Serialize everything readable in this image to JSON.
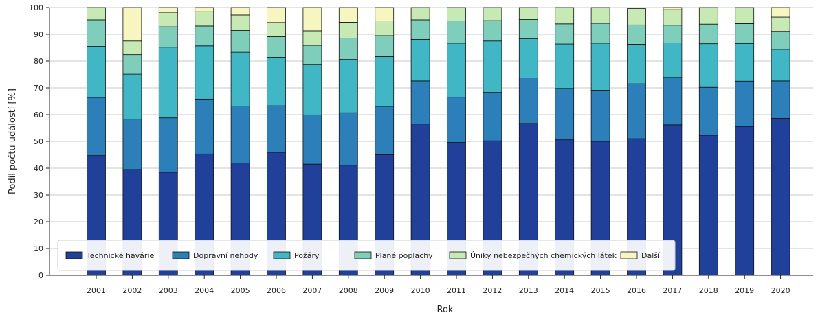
{
  "chart_data": {
    "type": "bar",
    "stacked": true,
    "xlabel": "Rok",
    "ylabel": "Podíl počtu událostí [%]",
    "ylim": [
      0,
      100
    ],
    "yticks": [
      0,
      10,
      20,
      30,
      40,
      50,
      60,
      70,
      80,
      90,
      100
    ],
    "grid": "horizontal",
    "legend_position": "bottom-left, inside plot",
    "categories": [
      "2001",
      "2002",
      "2003",
      "2004",
      "2005",
      "2006",
      "2007",
      "2008",
      "2009",
      "2010",
      "2011",
      "2012",
      "2013",
      "2014",
      "2015",
      "2016",
      "2017",
      "2018",
      "2019",
      "2020"
    ],
    "series": [
      {
        "name": "Technické havárie",
        "color": "#21409a",
        "values": [
          44.7,
          39.5,
          38.5,
          45.3,
          41.9,
          45.9,
          41.5,
          41.1,
          45.0,
          56.5,
          49.6,
          50.2,
          56.7,
          50.6,
          50.0,
          51.0,
          56.2,
          52.3,
          55.6,
          58.6
        ]
      },
      {
        "name": "Dopravní nehody",
        "color": "#2c7fb8",
        "values": [
          21.7,
          18.8,
          20.3,
          20.5,
          21.3,
          17.4,
          18.4,
          19.6,
          18.1,
          16.1,
          16.9,
          18.1,
          17.0,
          19.2,
          19.1,
          20.5,
          17.7,
          17.9,
          16.9,
          14.0
        ]
      },
      {
        "name": "Požáry",
        "color": "#41b6c4",
        "values": [
          19.1,
          16.8,
          26.4,
          19.9,
          20.1,
          18.1,
          18.9,
          19.9,
          18.6,
          15.5,
          20.2,
          19.2,
          14.7,
          16.6,
          17.6,
          14.8,
          12.9,
          16.3,
          14.1,
          11.8
        ]
      },
      {
        "name": "Plané poplachy",
        "color": "#7fcdbb",
        "values": [
          9.9,
          7.3,
          7.6,
          7.4,
          8.1,
          7.7,
          7.1,
          8.0,
          7.8,
          7.3,
          8.3,
          7.6,
          7.1,
          7.5,
          7.4,
          7.2,
          6.6,
          7.3,
          7.4,
          6.7
        ]
      },
      {
        "name": "Úniky nebezpečných chemických látek",
        "color": "#c7e9b4",
        "values": [
          4.6,
          5.1,
          5.4,
          5.3,
          5.8,
          5.3,
          5.4,
          5.9,
          5.5,
          4.6,
          5.0,
          4.9,
          4.5,
          6.1,
          5.9,
          6.1,
          5.8,
          6.2,
          6.0,
          5.3
        ]
      },
      {
        "name": "Další",
        "color": "#f7f5c0",
        "values": [
          0.0,
          12.5,
          1.8,
          1.6,
          2.8,
          5.6,
          8.7,
          5.5,
          5.0,
          0.0,
          0.0,
          0.0,
          0.0,
          0.0,
          0.0,
          0.0,
          0.8,
          0.0,
          0.0,
          3.6
        ]
      }
    ]
  }
}
